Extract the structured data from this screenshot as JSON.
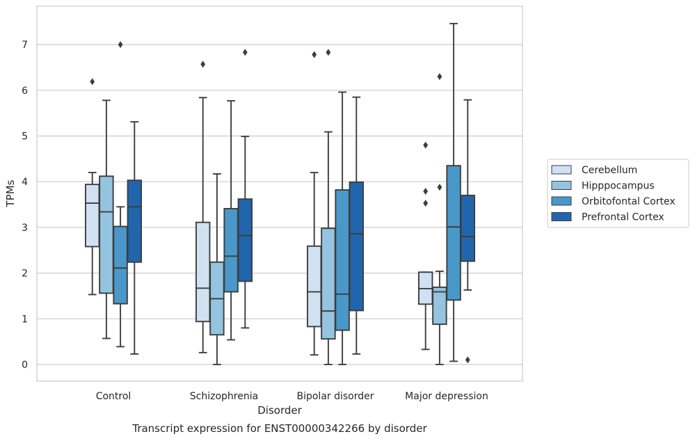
{
  "chart_data": {
    "type": "box",
    "title": "Transcript expression for ENST00000342266 by disorder",
    "xlabel": "Disorder",
    "ylabel": "TPMs",
    "categories": [
      "Control",
      "Schizophrenia",
      "Bipolar disorder",
      "Major depression"
    ],
    "ylim": [
      -0.35,
      7.85
    ],
    "yticks": [
      0,
      1,
      2,
      3,
      4,
      5,
      6,
      7
    ],
    "grid": "horizontal",
    "legend_position": "right",
    "series": [
      {
        "name": "Cerebellum",
        "color": "#d0e1f2",
        "boxes": [
          {
            "whisker_low": 1.53,
            "q1": 2.58,
            "median": 3.53,
            "q3": 3.94,
            "whisker_high": 4.2,
            "outliers": [
              6.19
            ]
          },
          {
            "whisker_low": 0.26,
            "q1": 0.94,
            "median": 1.67,
            "q3": 3.11,
            "whisker_high": 5.84,
            "outliers": [
              6.57
            ]
          },
          {
            "whisker_low": 0.21,
            "q1": 0.83,
            "median": 1.59,
            "q3": 2.59,
            "whisker_high": 4.2,
            "outliers": [
              6.78
            ]
          },
          {
            "whisker_low": 0.33,
            "q1": 1.32,
            "median": 1.66,
            "q3": 2.02,
            "whisker_high": 2.02,
            "outliers": [
              4.8,
              3.79,
              3.53
            ]
          }
        ]
      },
      {
        "name": "Hipppocampus",
        "color": "#94c4df",
        "boxes": [
          {
            "whisker_low": 0.57,
            "q1": 1.56,
            "median": 3.34,
            "q3": 4.12,
            "whisker_high": 5.78,
            "outliers": []
          },
          {
            "whisker_low": 0.0,
            "q1": 0.65,
            "median": 1.44,
            "q3": 2.24,
            "whisker_high": 4.17,
            "outliers": []
          },
          {
            "whisker_low": 0.0,
            "q1": 0.56,
            "median": 1.17,
            "q3": 2.98,
            "whisker_high": 5.09,
            "outliers": [
              6.83
            ]
          },
          {
            "whisker_low": 0.0,
            "q1": 0.88,
            "median": 1.59,
            "q3": 1.69,
            "whisker_high": 2.04,
            "outliers": [
              6.3,
              3.88
            ]
          }
        ]
      },
      {
        "name": "Orbitofontal Cortex",
        "color": "#4a98c9",
        "boxes": [
          {
            "whisker_low": 0.39,
            "q1": 1.33,
            "median": 2.11,
            "q3": 3.02,
            "whisker_high": 3.45,
            "outliers": [
              7.0
            ]
          },
          {
            "whisker_low": 0.54,
            "q1": 1.59,
            "median": 2.37,
            "q3": 3.41,
            "whisker_high": 5.77,
            "outliers": []
          },
          {
            "whisker_low": 0.0,
            "q1": 0.75,
            "median": 1.54,
            "q3": 3.82,
            "whisker_high": 5.96,
            "outliers": []
          },
          {
            "whisker_low": 0.07,
            "q1": 1.41,
            "median": 3.01,
            "q3": 4.35,
            "whisker_high": 7.46,
            "outliers": []
          }
        ]
      },
      {
        "name": "Prefrontal Cortex",
        "color": "#2166ac",
        "boxes": [
          {
            "whisker_low": 0.23,
            "q1": 2.24,
            "median": 3.45,
            "q3": 4.03,
            "whisker_high": 5.31,
            "outliers": []
          },
          {
            "whisker_low": 0.8,
            "q1": 1.82,
            "median": 2.82,
            "q3": 3.62,
            "whisker_high": 4.99,
            "outliers": [
              6.83
            ]
          },
          {
            "whisker_low": 0.23,
            "q1": 1.18,
            "median": 2.86,
            "q3": 3.99,
            "whisker_high": 5.85,
            "outliers": []
          },
          {
            "whisker_low": 1.63,
            "q1": 2.26,
            "median": 2.8,
            "q3": 3.7,
            "whisker_high": 5.79,
            "outliers": [
              0.1
            ]
          }
        ]
      }
    ]
  }
}
